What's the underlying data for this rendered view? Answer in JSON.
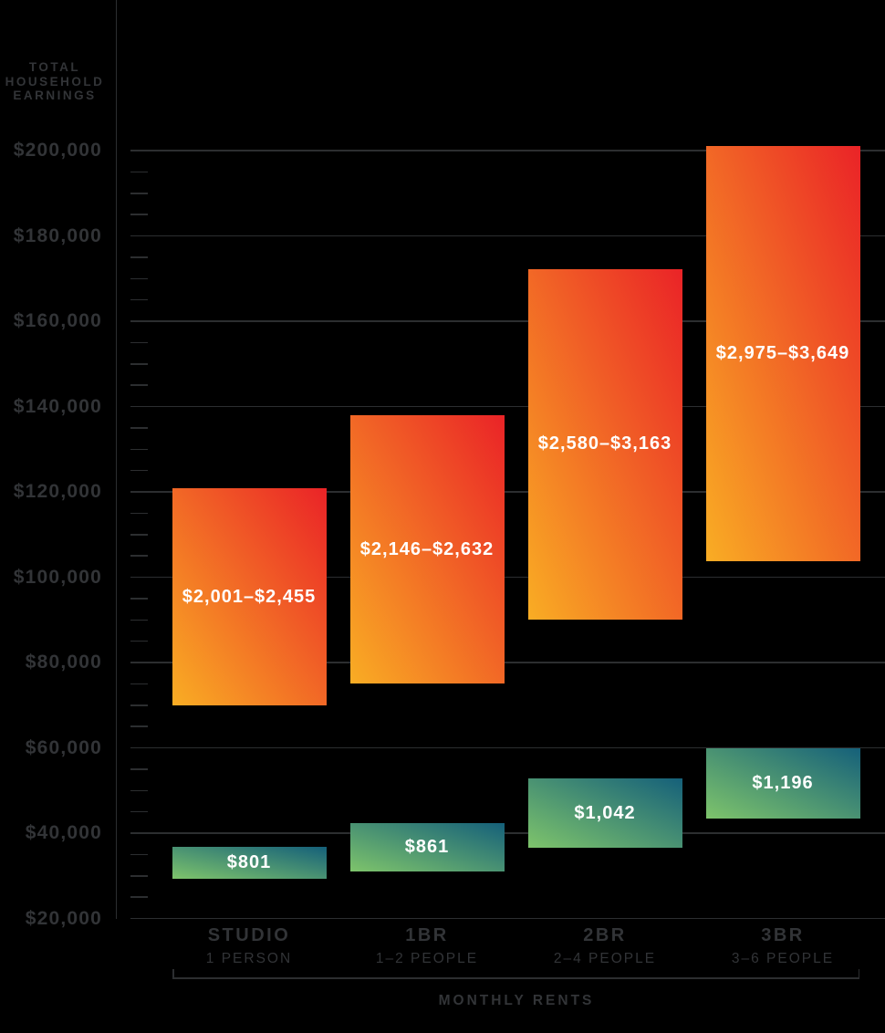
{
  "colors": {
    "background": "#000000",
    "grid": "#2c2e30",
    "axis_text": "#323437",
    "bar_label_text": "#ffffff",
    "orange_gradient_from": "#f9ad24",
    "orange_gradient_to": "#ea2327",
    "green_gradient_from": "#7ec46b",
    "green_gradient_to": "#15607a"
  },
  "y_axis_title_lines": [
    "TOTAL",
    "HOUSEHOLD",
    "EARNINGS"
  ],
  "chart_data": {
    "type": "bar",
    "title": "",
    "ylabel": "TOTAL HOUSEHOLD EARNINGS",
    "xlabel": "MONTHLY RENTS",
    "ylim": [
      20000,
      200000
    ],
    "grid": "major horizontal gridlines every $20,000, minor ticks every $5,000",
    "legend_position": "none",
    "y_ticks": [
      {
        "value": 20000,
        "label": "$20,000"
      },
      {
        "value": 40000,
        "label": "$40,000"
      },
      {
        "value": 60000,
        "label": "$60,000"
      },
      {
        "value": 80000,
        "label": "$80,000"
      },
      {
        "value": 100000,
        "label": "$100,000"
      },
      {
        "value": 120000,
        "label": "$120,000"
      },
      {
        "value": 140000,
        "label": "$140,000"
      },
      {
        "value": 160000,
        "label": "$160,000"
      },
      {
        "value": 180000,
        "label": "$180,000"
      },
      {
        "value": 200000,
        "label": "$200,000"
      }
    ],
    "y_minor_step": 5000,
    "categories": [
      {
        "label": "STUDIO",
        "sublabel": "1 PERSON"
      },
      {
        "label": "1BR",
        "sublabel": "1–2 PEOPLE"
      },
      {
        "label": "2BR",
        "sublabel": "2–4 PEOPLE"
      },
      {
        "label": "3BR",
        "sublabel": "3–6 PEOPLE"
      }
    ],
    "series": [
      {
        "name": "orange-income-range-bars",
        "style": "orange",
        "bar_labels": [
          "$2,001–$2,455",
          "$2,146–$2,632",
          "$2,580–$3,163",
          "$2,975–$3,649"
        ],
        "income_ranges": [
          [
            70000,
            120750
          ],
          [
            75000,
            138000
          ],
          [
            90000,
            172250
          ],
          [
            103750,
            201000
          ]
        ]
      },
      {
        "name": "green-income-range-bars",
        "style": "green",
        "bar_labels": [
          "$801",
          "$861",
          "$1,042",
          "$1,196"
        ],
        "income_ranges": [
          [
            29250,
            36750
          ],
          [
            31000,
            42250
          ],
          [
            36500,
            52750
          ],
          [
            43500,
            60000
          ]
        ]
      }
    ]
  }
}
